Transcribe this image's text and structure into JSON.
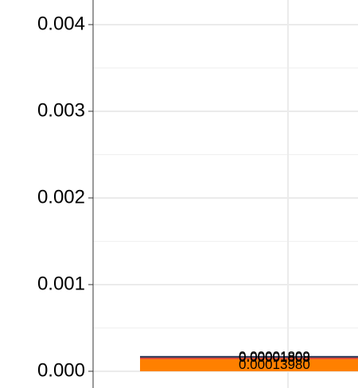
{
  "chart_data": {
    "type": "stacked_bar",
    "categories": [
      null
    ],
    "series": [
      {
        "color": "#ff8000",
        "values": [
          0.0001398
        ],
        "value_labels": [
          "0.00013980"
        ]
      },
      {
        "color": "#e0402a",
        "values": [
          1.808e-05
        ],
        "value_labels": [
          "0.00001808"
        ]
      },
      {
        "color": "#1f2d4f",
        "values": [
          1.809e-05
        ],
        "value_labels": [
          "0.00001809"
        ]
      }
    ],
    "ylim": [
      -0.000193,
      0.004284
    ],
    "yticks": [
      {
        "value": 0,
        "label": "0.000"
      },
      {
        "value": 0.001,
        "label": "0.001"
      },
      {
        "value": 0.002,
        "label": "0.002"
      },
      {
        "value": 0.003,
        "label": "0.003"
      },
      {
        "value": 0.004,
        "label": "0.004"
      }
    ],
    "yminor": [
      0.0005,
      0.0015,
      0.0025,
      0.0035
    ],
    "grid": true
  }
}
